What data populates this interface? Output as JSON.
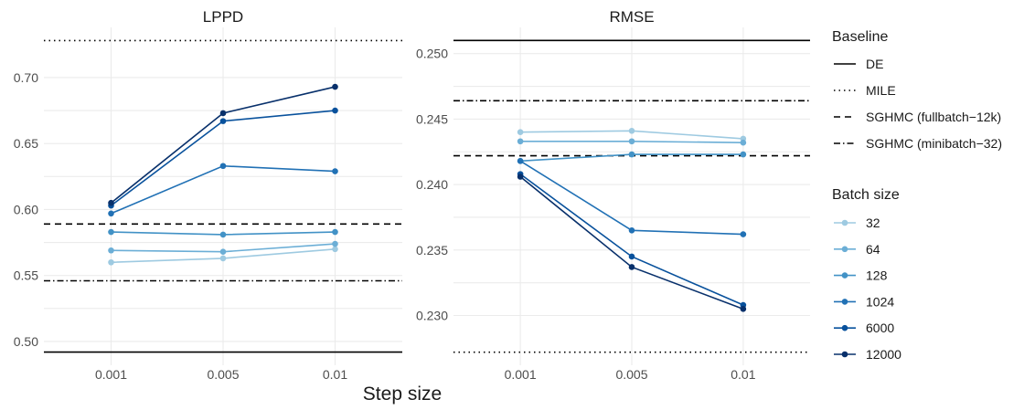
{
  "chart_data": {
    "x_title": "Step size",
    "x_categories": [
      "0.001",
      "0.005",
      "0.01"
    ],
    "batch_legend": {
      "title": "Batch size",
      "items": [
        {
          "label": "32",
          "color": "#9ecae1"
        },
        {
          "label": "64",
          "color": "#6baed6"
        },
        {
          "label": "128",
          "color": "#4292c6"
        },
        {
          "label": "1024",
          "color": "#2171b5"
        },
        {
          "label": "6000",
          "color": "#08519c"
        },
        {
          "label": "12000",
          "color": "#08306b"
        }
      ]
    },
    "baseline_legend": {
      "title": "Baseline",
      "items": [
        {
          "label": "DE",
          "dash": "solid"
        },
        {
          "label": "MILE",
          "dash": "dotted"
        },
        {
          "label": "SGHMC (fullbatch−12k)",
          "dash": "dashed"
        },
        {
          "label": "SGHMC (minibatch−32)",
          "dash": "dotdash"
        }
      ]
    },
    "panels": [
      {
        "type": "line",
        "title": "LPPD",
        "ylim": [
          0.482,
          0.738
        ],
        "yticks": [
          0.5,
          0.55,
          0.6,
          0.65,
          0.7
        ],
        "ytick_labels": [
          "0.50",
          "0.55",
          "0.60",
          "0.65",
          "0.70"
        ],
        "baselines": {
          "DE": 0.492,
          "MILE": 0.728,
          "SGHMC (fullbatch−12k)": 0.589,
          "SGHMC (minibatch−32)": 0.546
        },
        "series": [
          {
            "name": "32",
            "values": [
              0.56,
              0.563,
              0.57
            ]
          },
          {
            "name": "64",
            "values": [
              0.569,
              0.568,
              0.574
            ]
          },
          {
            "name": "128",
            "values": [
              0.583,
              0.581,
              0.583
            ]
          },
          {
            "name": "1024",
            "values": [
              0.597,
              0.633,
              0.629
            ]
          },
          {
            "name": "6000",
            "values": [
              0.603,
              0.667,
              0.675
            ]
          },
          {
            "name": "12000",
            "values": [
              0.605,
              0.673,
              0.693
            ]
          }
        ]
      },
      {
        "type": "line",
        "title": "RMSE",
        "ylim": [
          0.2262,
          0.252
        ],
        "yticks": [
          0.23,
          0.235,
          0.24,
          0.245,
          0.25
        ],
        "ytick_labels": [
          "0.230",
          "0.235",
          "0.240",
          "0.245",
          "0.250"
        ],
        "baselines": {
          "DE": 0.251,
          "MILE": 0.2272,
          "SGHMC (fullbatch−12k)": 0.2422,
          "SGHMC (minibatch−32)": 0.2464
        },
        "series": [
          {
            "name": "32",
            "values": [
              0.244,
              0.2441,
              0.2435
            ]
          },
          {
            "name": "64",
            "values": [
              0.2433,
              0.2433,
              0.2432
            ]
          },
          {
            "name": "128",
            "values": [
              0.2418,
              0.2423,
              0.2423
            ]
          },
          {
            "name": "1024",
            "values": [
              0.2418,
              0.2365,
              0.2362
            ]
          },
          {
            "name": "6000",
            "values": [
              0.2408,
              0.2345,
              0.2308
            ]
          },
          {
            "name": "12000",
            "values": [
              0.2406,
              0.2337,
              0.2305
            ]
          }
        ]
      }
    ]
  }
}
